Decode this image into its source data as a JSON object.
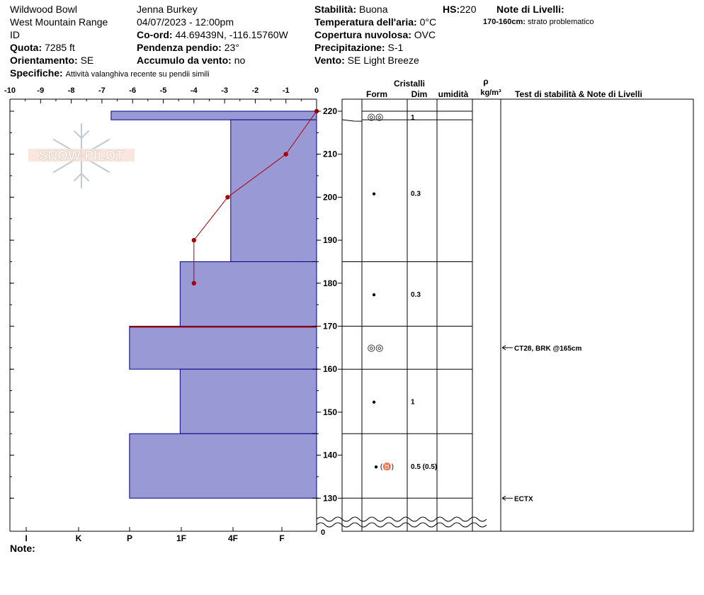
{
  "header": {
    "location": "Wildwood Bowl",
    "range": "West Mountain Range",
    "state": "ID",
    "observer": "Jenna Burkey",
    "datetime": "04/07/2023 - 12:00pm",
    "coord_label": "Co-ord:",
    "coord_value": "44.69439N, -116.15760W",
    "slope_label": "Pendenza pendio:",
    "slope_value": "23°",
    "wind_load_label": "Accumulo da vento:",
    "wind_load_value": "no",
    "elev_label": "Quota:",
    "elev_value": "7285 ft",
    "aspect_label": "Orientamento:",
    "aspect_value": "SE",
    "specifics_label": "Specifiche:",
    "specifics_value": "Attività valanghiva recente su pendii simili",
    "stability_label": "Stabilità:",
    "stability_value": "Buona",
    "hs_label": "HS:",
    "hs_value": "220",
    "air_temp_label": "Temperatura dell'aria:",
    "air_temp_value": "0°C",
    "cloud_label": "Copertura nuvolosa:",
    "cloud_value": "OVC",
    "precip_label": "Precipitazione:",
    "precip_value": "S-1",
    "wind_label": "Vento:",
    "wind_value": "SE  Light Breeze",
    "layer_notes_label": "Note di Livelli:",
    "layer_note_range": "170-160cm:",
    "layer_note_text": "strato problematico",
    "notes_label": "Note:"
  },
  "logo_text": "SNOW PILOT",
  "table_headers": {
    "crystals": "Cristalli",
    "form": "Form",
    "size": "Dim",
    "moisture": "umidità",
    "rho": "ρ",
    "density_unit": "kg/m³",
    "tests": "Test di stabilità & Note di Livelli"
  },
  "colors": {
    "hardness_fill": "#9999d6",
    "hardness_stroke": "#000080",
    "temp_line": "#aa0000",
    "problem_line": "#aa0000"
  },
  "chart_data": {
    "type": "bar",
    "temp_axis": {
      "min": -10,
      "max": 0,
      "ticks": [
        "-10",
        "-9",
        "-8",
        "-7",
        "-6",
        "-5",
        "-4",
        "-3",
        "-2",
        "-1",
        "0"
      ]
    },
    "height_axis": {
      "min": 130,
      "max": 220,
      "ticks": [
        "220",
        "210",
        "200",
        "190",
        "180",
        "170",
        "160",
        "150",
        "140",
        "130"
      ],
      "bottom_label": "0"
    },
    "hardness_axis": {
      "labels": [
        "I",
        "K",
        "P",
        "1F",
        "4F",
        "F"
      ]
    },
    "hardness_layers": [
      {
        "top": 220,
        "bottom": 218,
        "hardness_temp_scale": -6.7
      },
      {
        "top": 218,
        "bottom": 185,
        "hardness_temp_scale": -2.8
      },
      {
        "top": 185,
        "bottom": 170,
        "hardness_temp_scale": -4.45
      },
      {
        "top": 170,
        "bottom": 160,
        "hardness_temp_scale": -6.1
      },
      {
        "top": 160,
        "bottom": 145,
        "hardness_temp_scale": -4.45
      },
      {
        "top": 145,
        "bottom": 130,
        "hardness_temp_scale": -6.1
      }
    ],
    "temperature_profile": [
      {
        "height": 220,
        "temp": 0
      },
      {
        "height": 210,
        "temp": -1
      },
      {
        "height": 200,
        "temp": -2.9
      },
      {
        "height": 190,
        "temp": -4
      },
      {
        "height": 180,
        "temp": -4
      }
    ],
    "problem_layer_height": 170,
    "grain_layers": [
      {
        "top": 220,
        "bottom": 218,
        "form": "◎◎",
        "size": "1",
        "marker_at": 218
      },
      {
        "top": 218,
        "bottom": 185,
        "form": "●",
        "size": "0.3",
        "marker_at": 201
      },
      {
        "top": 185,
        "bottom": 170,
        "form": "●",
        "size": "0.3",
        "marker_at": 177.5
      },
      {
        "top": 170,
        "bottom": 160,
        "form": "◎◎",
        "size": "",
        "marker_at": 165
      },
      {
        "top": 160,
        "bottom": 145,
        "form": "●",
        "size": "1",
        "marker_at": 152.5
      },
      {
        "top": 145,
        "bottom": 130,
        "form": "● (♉)",
        "size": "0.5 (0.5)",
        "marker_at": 137.5
      }
    ],
    "stability_tests": [
      {
        "height": 165,
        "text": "CT28, BRK @165cm"
      },
      {
        "height": 130,
        "text": "ECTX"
      }
    ]
  }
}
